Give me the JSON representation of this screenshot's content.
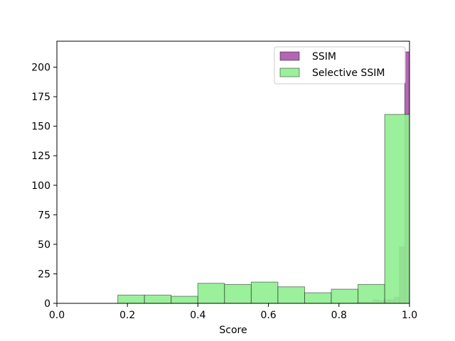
{
  "chart_data": {
    "type": "histogram",
    "title": "",
    "xlabel": "Score",
    "ylabel": "",
    "xlim": [
      0.0,
      1.0
    ],
    "ylim": [
      0,
      222
    ],
    "xticks": [
      0.0,
      0.2,
      0.4,
      0.6,
      0.8,
      1.0
    ],
    "xtick_labels": [
      "0.0",
      "0.2",
      "0.4",
      "0.6",
      "0.8",
      "1.0"
    ],
    "yticks": [
      0,
      25,
      50,
      75,
      100,
      125,
      150,
      175,
      200
    ],
    "ytick_labels": [
      "0",
      "25",
      "50",
      "75",
      "100",
      "125",
      "150",
      "175",
      "200"
    ],
    "grid": false,
    "legend_position": "top-right",
    "series": [
      {
        "name": "SSIM",
        "color": "#800080",
        "alpha": 0.6,
        "bins": [
          {
            "x0": 0.8524,
            "x1": 0.8673,
            "count": 1
          },
          {
            "x0": 0.8673,
            "x1": 0.8822,
            "count": 1
          },
          {
            "x0": 0.8822,
            "x1": 0.8971,
            "count": 1
          },
          {
            "x0": 0.8971,
            "x1": 0.912,
            "count": 3
          },
          {
            "x0": 0.912,
            "x1": 0.9269,
            "count": 2
          },
          {
            "x0": 0.9269,
            "x1": 0.9418,
            "count": 3
          },
          {
            "x0": 0.9418,
            "x1": 0.9567,
            "count": 3
          },
          {
            "x0": 0.9567,
            "x1": 0.9716,
            "count": 5
          },
          {
            "x0": 0.9716,
            "x1": 0.9865,
            "count": 48
          },
          {
            "x0": 0.9865,
            "x1": 1.0,
            "count": 213
          }
        ]
      },
      {
        "name": "Selective SSIM",
        "color": "#90EE90",
        "alpha": 0.9,
        "bins": [
          {
            "x0": 0.1727,
            "x1": 0.2484,
            "count": 7
          },
          {
            "x0": 0.2484,
            "x1": 0.3241,
            "count": 7
          },
          {
            "x0": 0.3241,
            "x1": 0.3998,
            "count": 6
          },
          {
            "x0": 0.3998,
            "x1": 0.4755,
            "count": 17
          },
          {
            "x0": 0.4755,
            "x1": 0.5512,
            "count": 16
          },
          {
            "x0": 0.5512,
            "x1": 0.6269,
            "count": 18
          },
          {
            "x0": 0.6269,
            "x1": 0.7026,
            "count": 14
          },
          {
            "x0": 0.7026,
            "x1": 0.7783,
            "count": 9
          },
          {
            "x0": 0.7783,
            "x1": 0.854,
            "count": 12
          },
          {
            "x0": 0.854,
            "x1": 0.9297,
            "count": 16
          },
          {
            "x0": 0.9297,
            "x1": 1.0054,
            "count": 160
          }
        ]
      }
    ]
  }
}
